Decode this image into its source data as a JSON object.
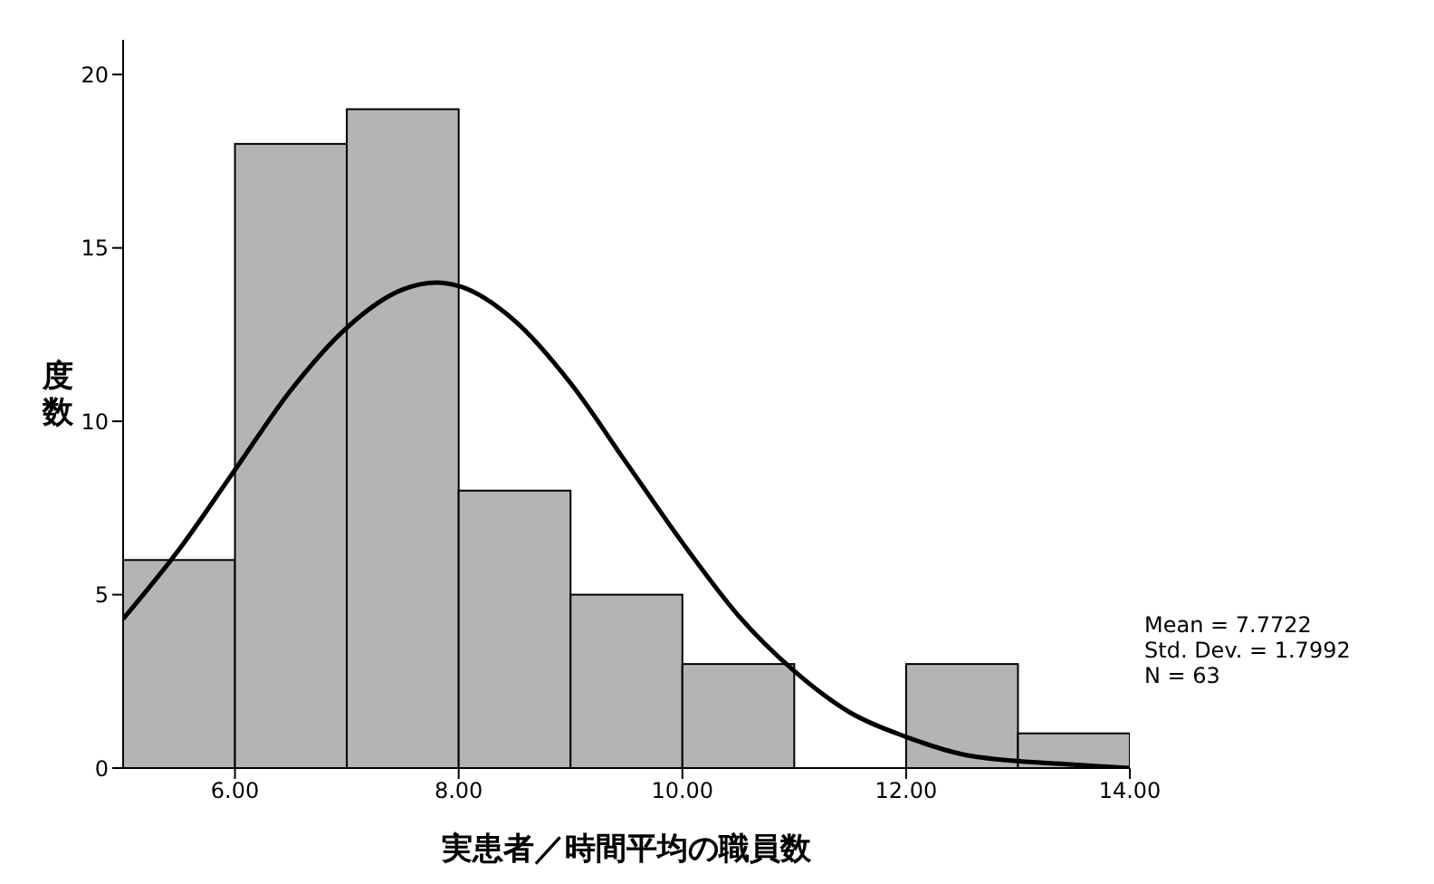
{
  "chart_data": {
    "type": "histogram",
    "xlabel": "実患者／時間平均の職員数",
    "ylabel": "度数",
    "bins": [
      5,
      6,
      7,
      8,
      9,
      10,
      11,
      12,
      13,
      14
    ],
    "values": [
      6,
      18,
      19,
      8,
      5,
      3,
      0,
      3,
      1
    ],
    "color": "#b4b4b4",
    "series": [
      {
        "type": "line",
        "color": "#000000",
        "x": [
          5,
          5.5,
          6,
          6.5,
          7,
          7.5,
          7.8,
          8,
          8.5,
          9,
          9.5,
          10,
          10.5,
          11,
          11.5,
          12,
          12.5,
          13,
          13.5,
          14
        ],
        "values": [
          4.3,
          6.3,
          8.6,
          10.9,
          12.7,
          13.8,
          14,
          13.9,
          12.9,
          11.1,
          8.8,
          6.5,
          4.4,
          2.8,
          1.6,
          0.9,
          0.4,
          0.2,
          0.1,
          0
        ]
      }
    ],
    "xlim": [
      5,
      14
    ],
    "xticks": [
      {
        "value": 6,
        "label": "6.00"
      },
      {
        "value": 8,
        "label": "8.00"
      },
      {
        "value": 10,
        "label": "10.00"
      },
      {
        "value": 12,
        "label": "12.00"
      },
      {
        "value": 14,
        "label": "14.00"
      }
    ],
    "ylim": [
      0,
      21
    ],
    "yticks": [
      0,
      5,
      10,
      15,
      20
    ],
    "annotations": [
      "Mean = 7.7722",
      "Std. Dev. = 1.7992",
      "N = 63"
    ]
  }
}
